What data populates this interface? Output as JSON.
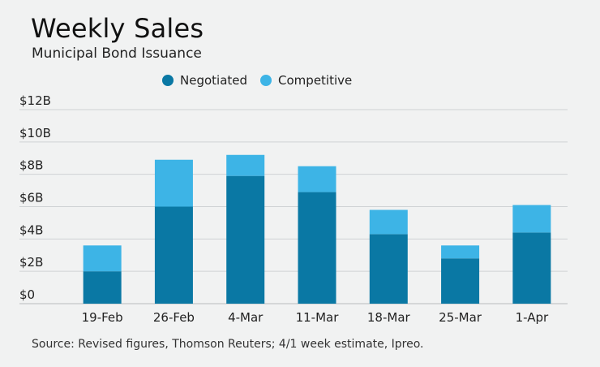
{
  "chart_data": {
    "type": "bar",
    "stacked": true,
    "title": "Weekly Sales",
    "subtitle": "Municipal Bond Issuance",
    "categories": [
      "19-Feb",
      "26-Feb",
      "4-Mar",
      "11-Mar",
      "18-Mar",
      "25-Mar",
      "1-Apr"
    ],
    "series": [
      {
        "name": "Negotiated",
        "color": "#0a78a4",
        "values": [
          2.0,
          6.0,
          7.9,
          6.9,
          4.3,
          2.8,
          4.4
        ]
      },
      {
        "name": "Competitive",
        "color": "#3db4e6",
        "values": [
          1.6,
          2.9,
          1.3,
          1.6,
          1.5,
          0.8,
          1.7
        ]
      }
    ],
    "ylim": [
      0,
      12
    ],
    "yticks": [
      0,
      2,
      4,
      6,
      8,
      10,
      12
    ],
    "ytick_labels": [
      "$0",
      "$2B",
      "$4B",
      "$6B",
      "$8B",
      "$10B",
      "$12B"
    ],
    "xlabel": "",
    "ylabel": "",
    "grid": true,
    "legend_position": "top"
  },
  "footer": {
    "source": "Source: Revised figures, Thomson Reuters; 4/1 week estimate, Ipreo."
  }
}
